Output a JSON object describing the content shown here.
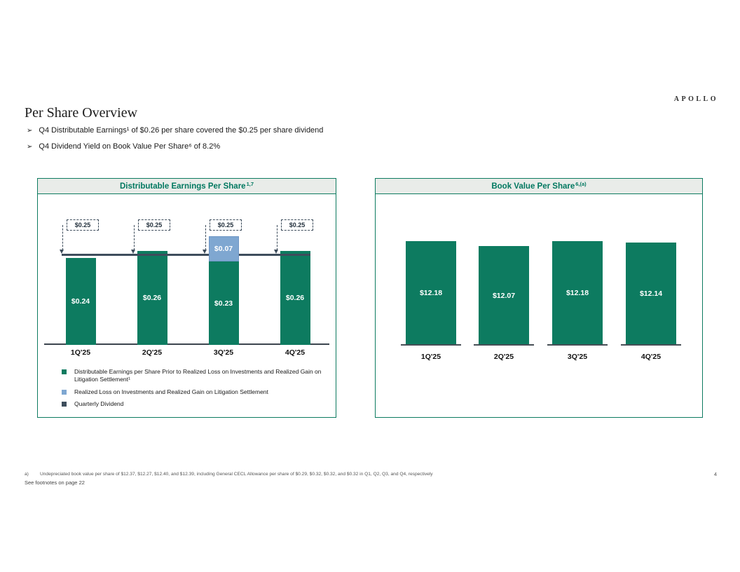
{
  "logo_text": "APOLLO",
  "header": {
    "bullet_char": "➢",
    "title": "Per Share Overview",
    "bullets": [
      "Q4 Distributable Earnings¹ of $0.26 per share covered the $0.25 per share dividend",
      "Q4 Dividend Yield on Book Value Per Share⁶ of 8.2%"
    ]
  },
  "colors": {
    "bar_green": "#0d7b60",
    "light_blue": "#7fa7d1",
    "slate": "#3e4d5c",
    "panel_border": "#0d7b60",
    "panel_header_bg": "#e9ece9",
    "title_teal": "#007860"
  },
  "chart_data": [
    {
      "type": "bar",
      "title": "Distributable Earnings Per Share",
      "title_sup": "1,7",
      "categories": [
        "1Q'25",
        "2Q'25",
        "3Q'25",
        "4Q'25"
      ],
      "series": [
        {
          "name": "Distributable Earnings per Share Prior to Realized Loss on Investments and Realized Gain on Litigation Settlement¹",
          "values": [
            0.24,
            0.26,
            0.23,
            0.26
          ],
          "labels": [
            "$0.24",
            "$0.26",
            "$0.23",
            "$0.26"
          ],
          "color_key": "bar_green"
        },
        {
          "name": "Realized Loss on Investments and Realized Gain on Litigation Settlement",
          "values": [
            0,
            0,
            0.07,
            0
          ],
          "labels": [
            "",
            "",
            "$0.07",
            ""
          ],
          "color_key": "light_blue"
        }
      ],
      "dividend_line": {
        "name": "Quarterly Dividend",
        "label": "$0.25",
        "value": 0.25,
        "color_key": "slate"
      },
      "ylim": [
        0,
        0.32
      ],
      "legend_position": "bottom",
      "legend": [
        {
          "label": "Distributable Earnings per Share Prior to Realized Loss on Investments and Realized Gain on Litigation Settlement¹",
          "color_key": "bar_green"
        },
        {
          "label": "Realized Loss on Investments and Realized Gain on Litigation Settlement",
          "color_key": "light_blue"
        },
        {
          "label": "Quarterly Dividend",
          "color_key": "slate"
        }
      ]
    },
    {
      "type": "bar",
      "title": "Book Value Per Share",
      "title_sup": "6,(a)",
      "categories": [
        "1Q'25",
        "2Q'25",
        "3Q'25",
        "4Q'25"
      ],
      "values": [
        12.18,
        12.07,
        12.18,
        12.14
      ],
      "labels": [
        "$12.18",
        "$12.07",
        "$12.18",
        "$12.14"
      ],
      "ylim": [
        10,
        12.5
      ],
      "color_key": "bar_green"
    }
  ],
  "footnotes": {
    "marker": "a)",
    "note_a": "Undepreciated book value per share of $12.37, $12.27, $12.40, and $12.39, including General CECL Allowance per share of $0.29, $0.32, $0.32, and $0.32 in Q1, Q2, Q3, and Q4, respectively",
    "see_footnotes": "See footnotes on page 22",
    "page_number": "4"
  }
}
